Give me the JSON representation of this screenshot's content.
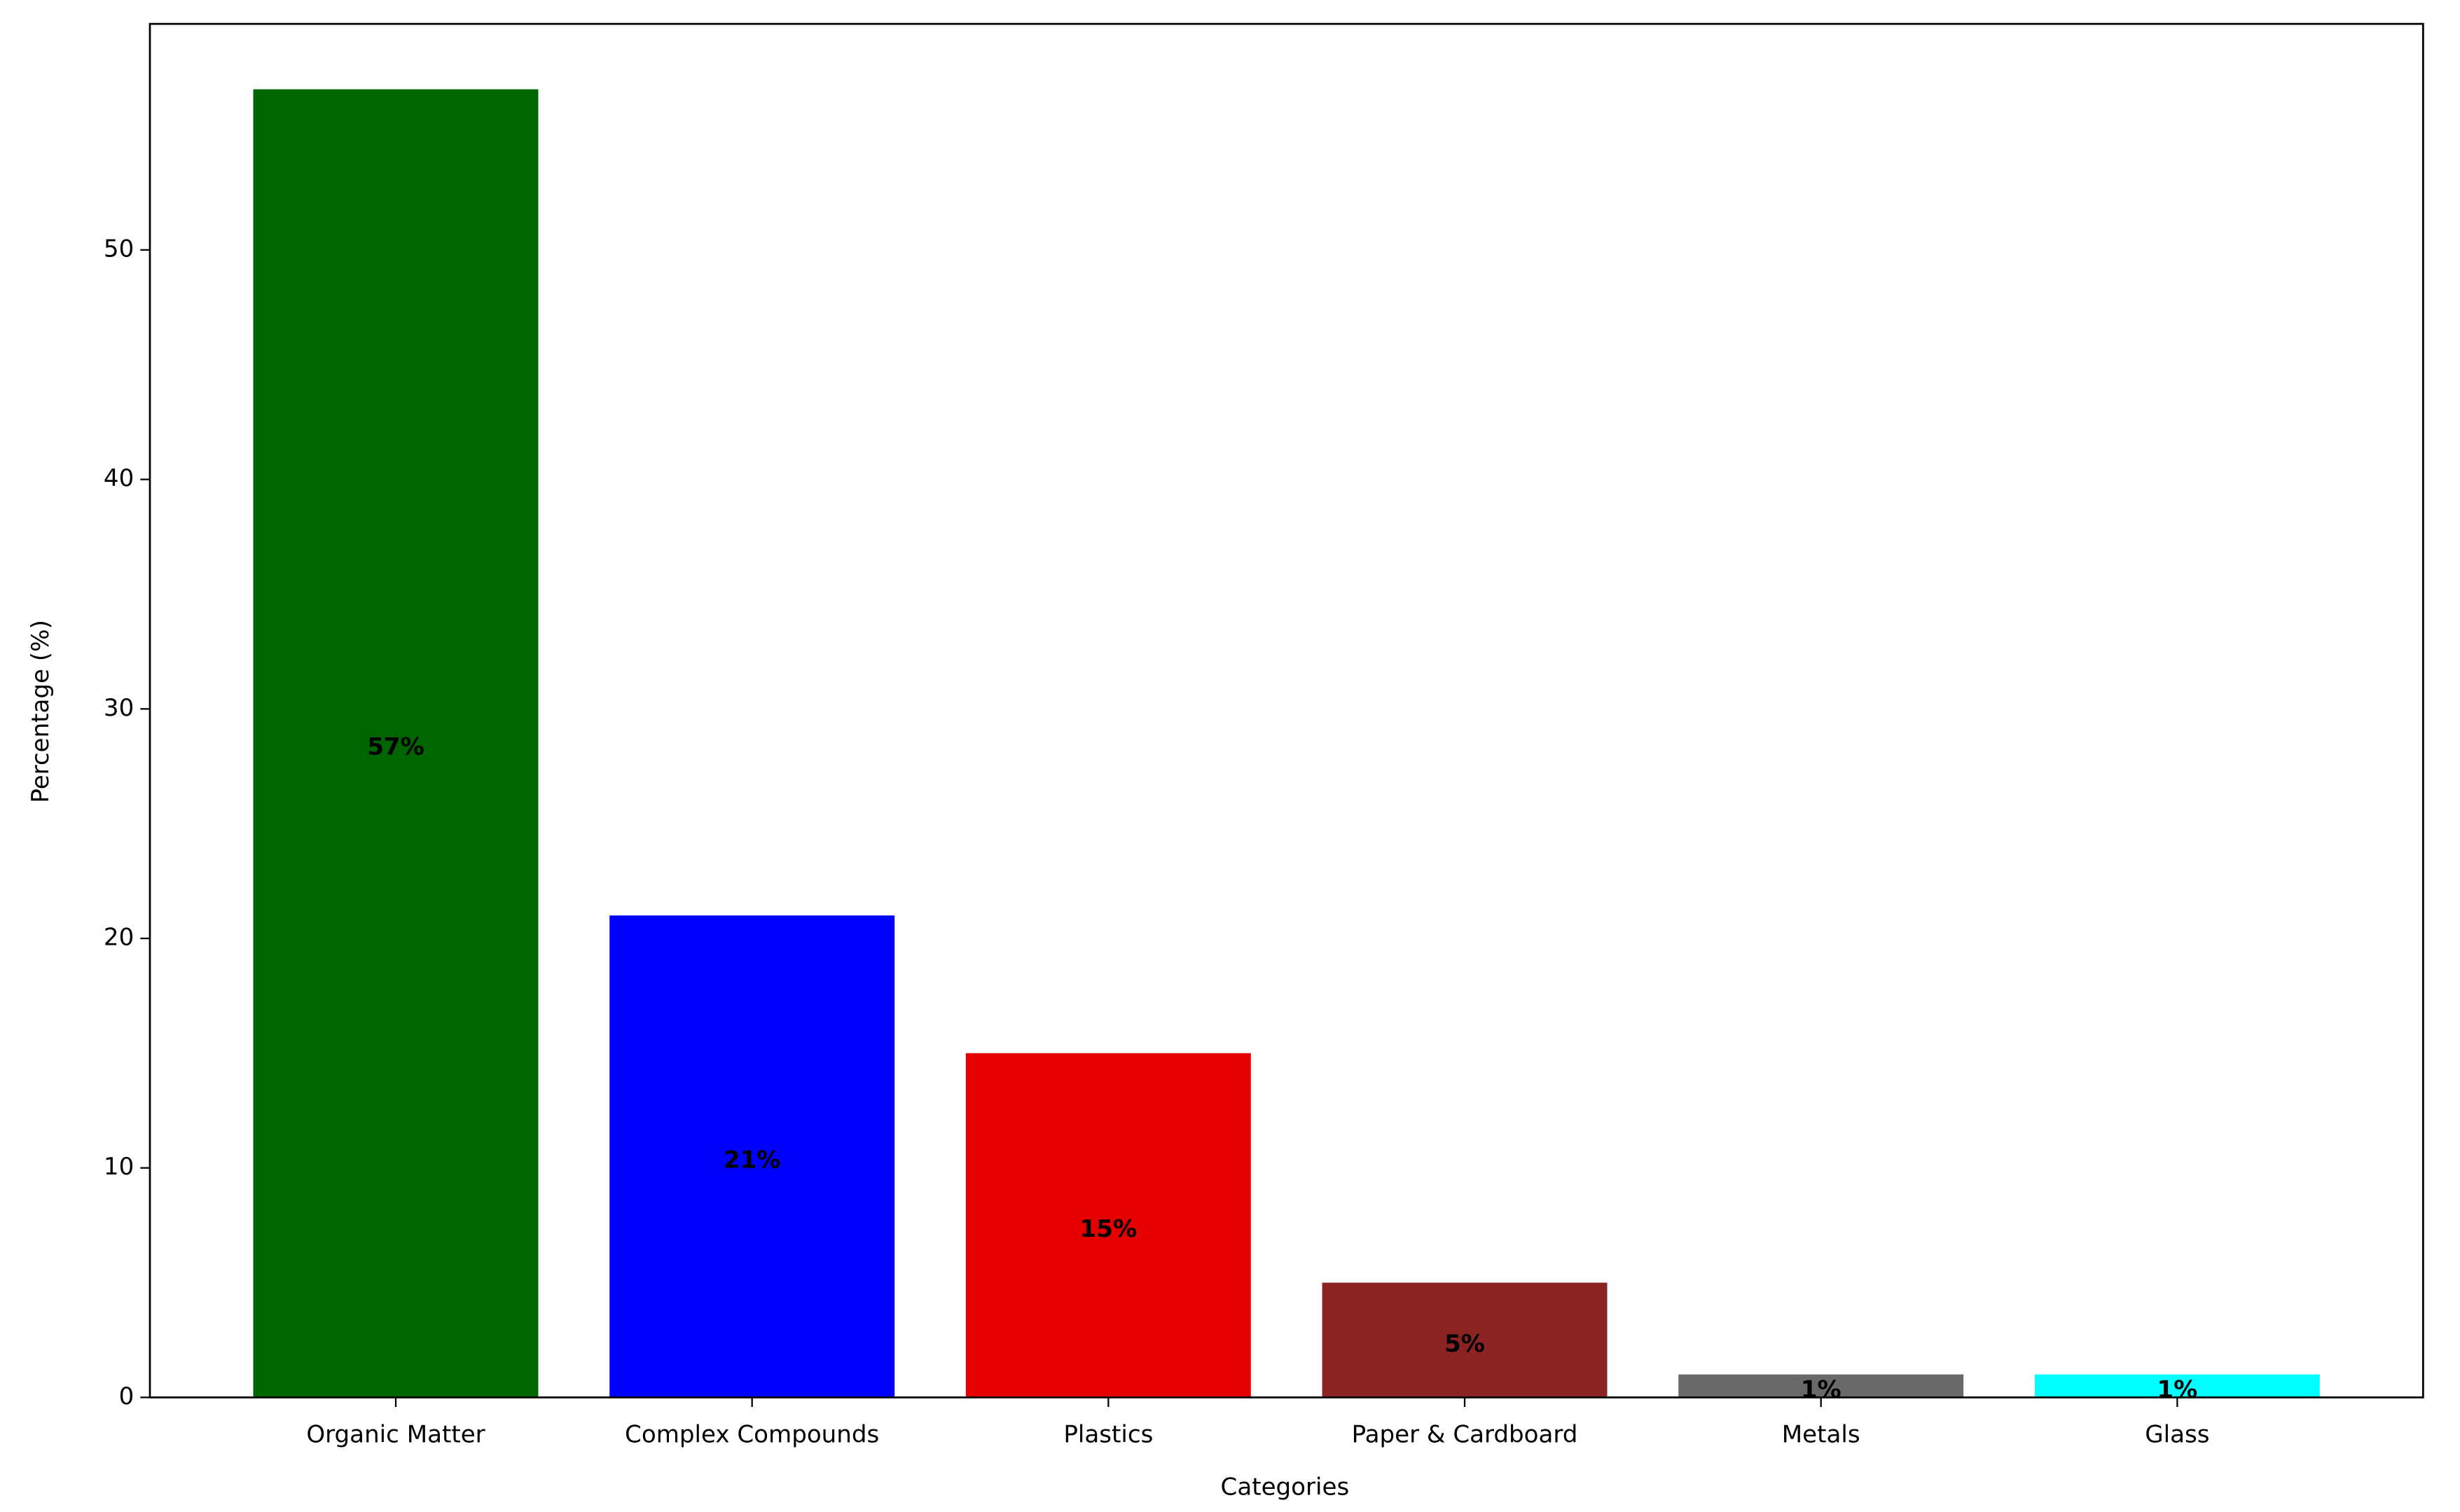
{
  "chart_data": {
    "type": "bar",
    "x_label": "Categories",
    "y_label": "Percentage (%)",
    "categories": [
      "Organic Matter",
      "Complex Compounds",
      "Plastics",
      "Paper & Cardboard",
      "Metals",
      "Glass"
    ],
    "values": [
      57,
      21,
      15,
      5,
      1,
      1
    ],
    "value_labels": [
      "57%",
      "21%",
      "15%",
      "5%",
      "1%",
      "1%"
    ],
    "colors": [
      "#006400",
      "#0000ff",
      "#e50000",
      "#8b2323",
      "#696969",
      "#00ffff"
    ],
    "ylim": [
      0,
      59.85
    ],
    "yticks": [
      0,
      10,
      20,
      30,
      40,
      50
    ],
    "grid": false
  }
}
